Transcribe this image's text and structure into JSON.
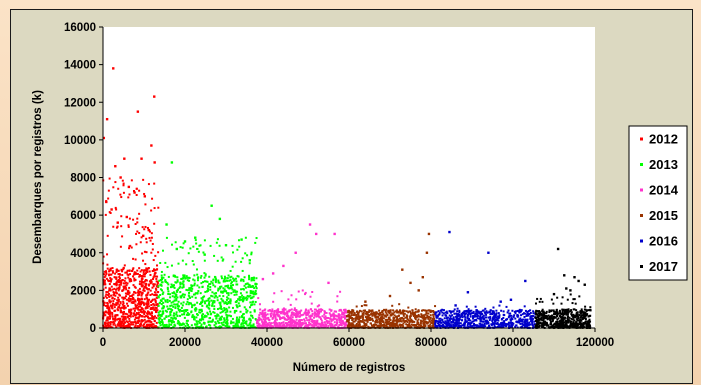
{
  "chart_data": {
    "type": "scatter",
    "title": "",
    "xlabel": "Número de registros",
    "ylabel": "Desembarques por registros (k)",
    "xlim": [
      0,
      120000
    ],
    "ylim": [
      0,
      16000
    ],
    "x_ticks": [
      "0",
      "20000",
      "40000",
      "60000",
      "80000",
      "100000",
      "120000"
    ],
    "y_ticks": [
      "0",
      "2000",
      "4000",
      "6000",
      "8000",
      "10000",
      "12000",
      "14000",
      "16000"
    ],
    "grid": false,
    "legend_position": "right",
    "series": [
      {
        "name": "2012",
        "color": "#ff0000",
        "x_range": [
          0,
          13500
        ],
        "points": [
          [
            2500,
            13800
          ],
          [
            12500,
            12300
          ],
          [
            8500,
            11500
          ],
          [
            1000,
            11100
          ],
          [
            11800,
            9700
          ],
          [
            200,
            10100
          ],
          [
            5200,
            9000
          ],
          [
            9400,
            9000
          ],
          [
            12600,
            8800
          ],
          [
            3000,
            8600
          ],
          [
            4300,
            8000
          ],
          [
            6300,
            7500
          ],
          [
            7700,
            7200
          ],
          [
            10200,
            7000
          ],
          [
            800,
            6700
          ],
          [
            2100,
            6300
          ],
          [
            5800,
            5900
          ],
          [
            3600,
            5600
          ],
          [
            11200,
            5200
          ],
          [
            9800,
            4900
          ]
        ]
      },
      {
        "name": "2013",
        "color": "#00ff00",
        "x_range": [
          13500,
          37500
        ],
        "points": [
          [
            16800,
            8800
          ],
          [
            26500,
            6500
          ],
          [
            28500,
            5800
          ],
          [
            15500,
            5500
          ],
          [
            22500,
            4800
          ],
          [
            20000,
            4600
          ],
          [
            30000,
            4400
          ],
          [
            33800,
            4700
          ],
          [
            35800,
            3600
          ],
          [
            18000,
            4200
          ],
          [
            24800,
            3900
          ]
        ]
      },
      {
        "name": "2014",
        "color": "#ff33cc",
        "x_range": [
          37500,
          59500
        ],
        "points": [
          [
            50500,
            5500
          ],
          [
            52000,
            5000
          ],
          [
            56500,
            5000
          ],
          [
            47000,
            4000
          ],
          [
            41500,
            2900
          ],
          [
            39000,
            2600
          ],
          [
            44000,
            3300
          ],
          [
            55000,
            2400
          ]
        ]
      },
      {
        "name": "2015",
        "color": "#993300",
        "x_range": [
          59500,
          81000
        ],
        "points": [
          [
            79500,
            5000
          ],
          [
            79000,
            4000
          ],
          [
            73000,
            3100
          ],
          [
            78000,
            2700
          ],
          [
            77000,
            2000
          ],
          [
            70000,
            1700
          ],
          [
            64000,
            1400
          ],
          [
            75000,
            2400
          ]
        ]
      },
      {
        "name": "2016",
        "color": "#0000cc",
        "x_range": [
          81000,
          105500
        ],
        "points": [
          [
            84500,
            5100
          ],
          [
            94000,
            4000
          ],
          [
            103000,
            2500
          ],
          [
            89000,
            1900
          ],
          [
            99500,
            1500
          ],
          [
            97000,
            1400
          ],
          [
            86000,
            1200
          ]
        ]
      },
      {
        "name": "2017",
        "color": "#000000",
        "x_range": [
          105500,
          119000
        ],
        "points": [
          [
            111000,
            4200
          ],
          [
            112500,
            2800
          ],
          [
            115000,
            2700
          ],
          [
            114000,
            2000
          ],
          [
            116000,
            2500
          ],
          [
            110000,
            1800
          ],
          [
            117500,
            2300
          ],
          [
            113000,
            2100
          ]
        ]
      }
    ]
  }
}
